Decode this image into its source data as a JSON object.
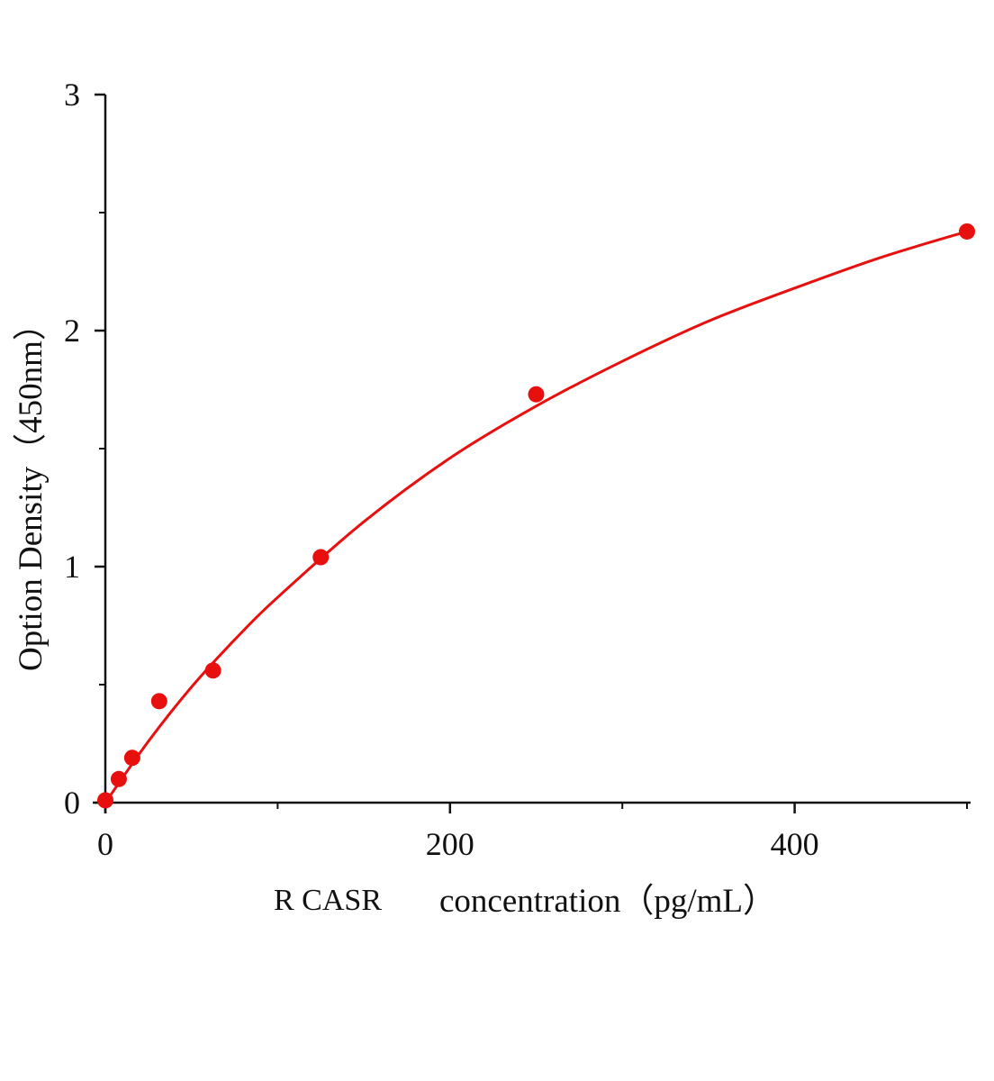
{
  "chart_data": {
    "type": "scatter",
    "title": "",
    "xlabel_prefix": "R CASR",
    "xlabel": "concentration（pg/mL）",
    "ylabel": "Option Density（450nm）",
    "xlim": [
      0,
      500
    ],
    "ylim": [
      0,
      3
    ],
    "x_ticks": [
      0,
      200,
      400
    ],
    "x_minor_ticks": [
      100,
      300,
      500
    ],
    "y_ticks": [
      0,
      1,
      2,
      3
    ],
    "y_minor_ticks": [
      0.5,
      1.5,
      2.5
    ],
    "grid": false,
    "legend": "none",
    "color": "#e8100f",
    "series": [
      {
        "kind": "points",
        "x": [
          0,
          7.8,
          15.6,
          31.25,
          62.5,
          125,
          250,
          500
        ],
        "y": [
          0.01,
          0.1,
          0.19,
          0.43,
          0.56,
          1.04,
          1.73,
          2.42
        ]
      },
      {
        "kind": "fit-curve",
        "x": [
          0,
          25,
          50,
          75,
          100,
          150,
          200,
          250,
          300,
          350,
          400,
          450,
          500
        ],
        "y": [
          0,
          0.26,
          0.49,
          0.69,
          0.87,
          1.19,
          1.46,
          1.68,
          1.87,
          2.04,
          2.18,
          2.31,
          2.42
        ]
      }
    ]
  }
}
